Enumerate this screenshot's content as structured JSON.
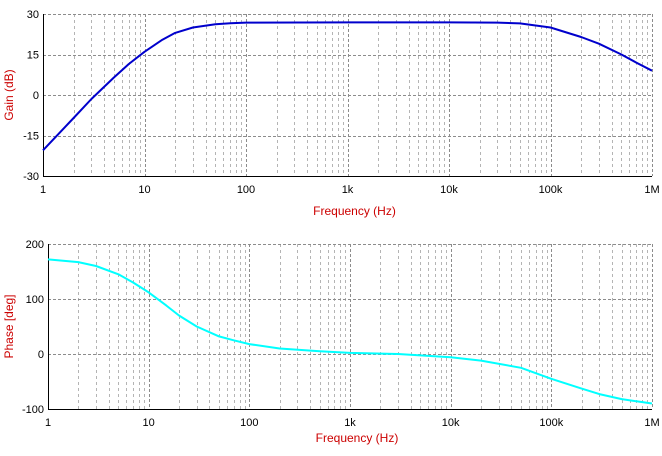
{
  "chart_data": [
    {
      "type": "line",
      "xlabel": "Frequency (Hz)",
      "ylabel": "Gain (dB)",
      "xscale": "log",
      "xlim": [
        1,
        1000000
      ],
      "ylim": [
        -30,
        30
      ],
      "x_ticks": [
        1,
        10,
        100,
        1000,
        10000,
        100000,
        1000000
      ],
      "x_tick_labels": [
        "1",
        "10",
        "100",
        "1k",
        "10k",
        "100k",
        "1M"
      ],
      "y_ticks": [
        30,
        15,
        0,
        -15,
        -30
      ],
      "y_tick_labels": [
        "30",
        "15",
        "0",
        "-15",
        "-30"
      ],
      "grid": true,
      "series": [
        {
          "color": "#0000cc",
          "x": [
            1,
            2,
            3,
            5,
            7,
            10,
            15,
            20,
            30,
            50,
            70,
            100,
            1000,
            10000,
            30000,
            50000,
            100000,
            200000,
            300000,
            500000,
            700000,
            1000000
          ],
          "y": [
            -20.5,
            -8.5,
            -1.5,
            6.5,
            11.5,
            16,
            20.5,
            23,
            25,
            26.2,
            26.6,
            26.8,
            26.9,
            26.9,
            26.8,
            26.5,
            25,
            21.5,
            19,
            15,
            12,
            9
          ]
        }
      ]
    },
    {
      "type": "line",
      "xlabel": "Frequency (Hz)",
      "ylabel": "Phase [deg]",
      "xscale": "log",
      "xlim": [
        1,
        1000000
      ],
      "ylim": [
        -100,
        200
      ],
      "x_ticks": [
        1,
        10,
        100,
        1000,
        10000,
        100000,
        1000000
      ],
      "x_tick_labels": [
        "1",
        "10",
        "100",
        "1k",
        "10k",
        "100k",
        "1M"
      ],
      "y_ticks": [
        200,
        100,
        0,
        -100
      ],
      "y_tick_labels": [
        "200",
        "100",
        "0",
        "-100"
      ],
      "grid": true,
      "series": [
        {
          "color": "#00ffff",
          "x": [
            1,
            2,
            3,
            5,
            7,
            10,
            15,
            20,
            30,
            50,
            70,
            100,
            200,
            500,
            1000,
            3000,
            10000,
            20000,
            50000,
            100000,
            200000,
            300000,
            500000,
            700000,
            1000000
          ],
          "y": [
            172,
            167,
            160,
            145,
            130,
            112,
            88,
            70,
            50,
            32,
            25,
            18,
            10,
            5,
            2,
            0,
            -6,
            -12,
            -25,
            -45,
            -63,
            -73,
            -82,
            -86,
            -90
          ]
        }
      ]
    }
  ]
}
